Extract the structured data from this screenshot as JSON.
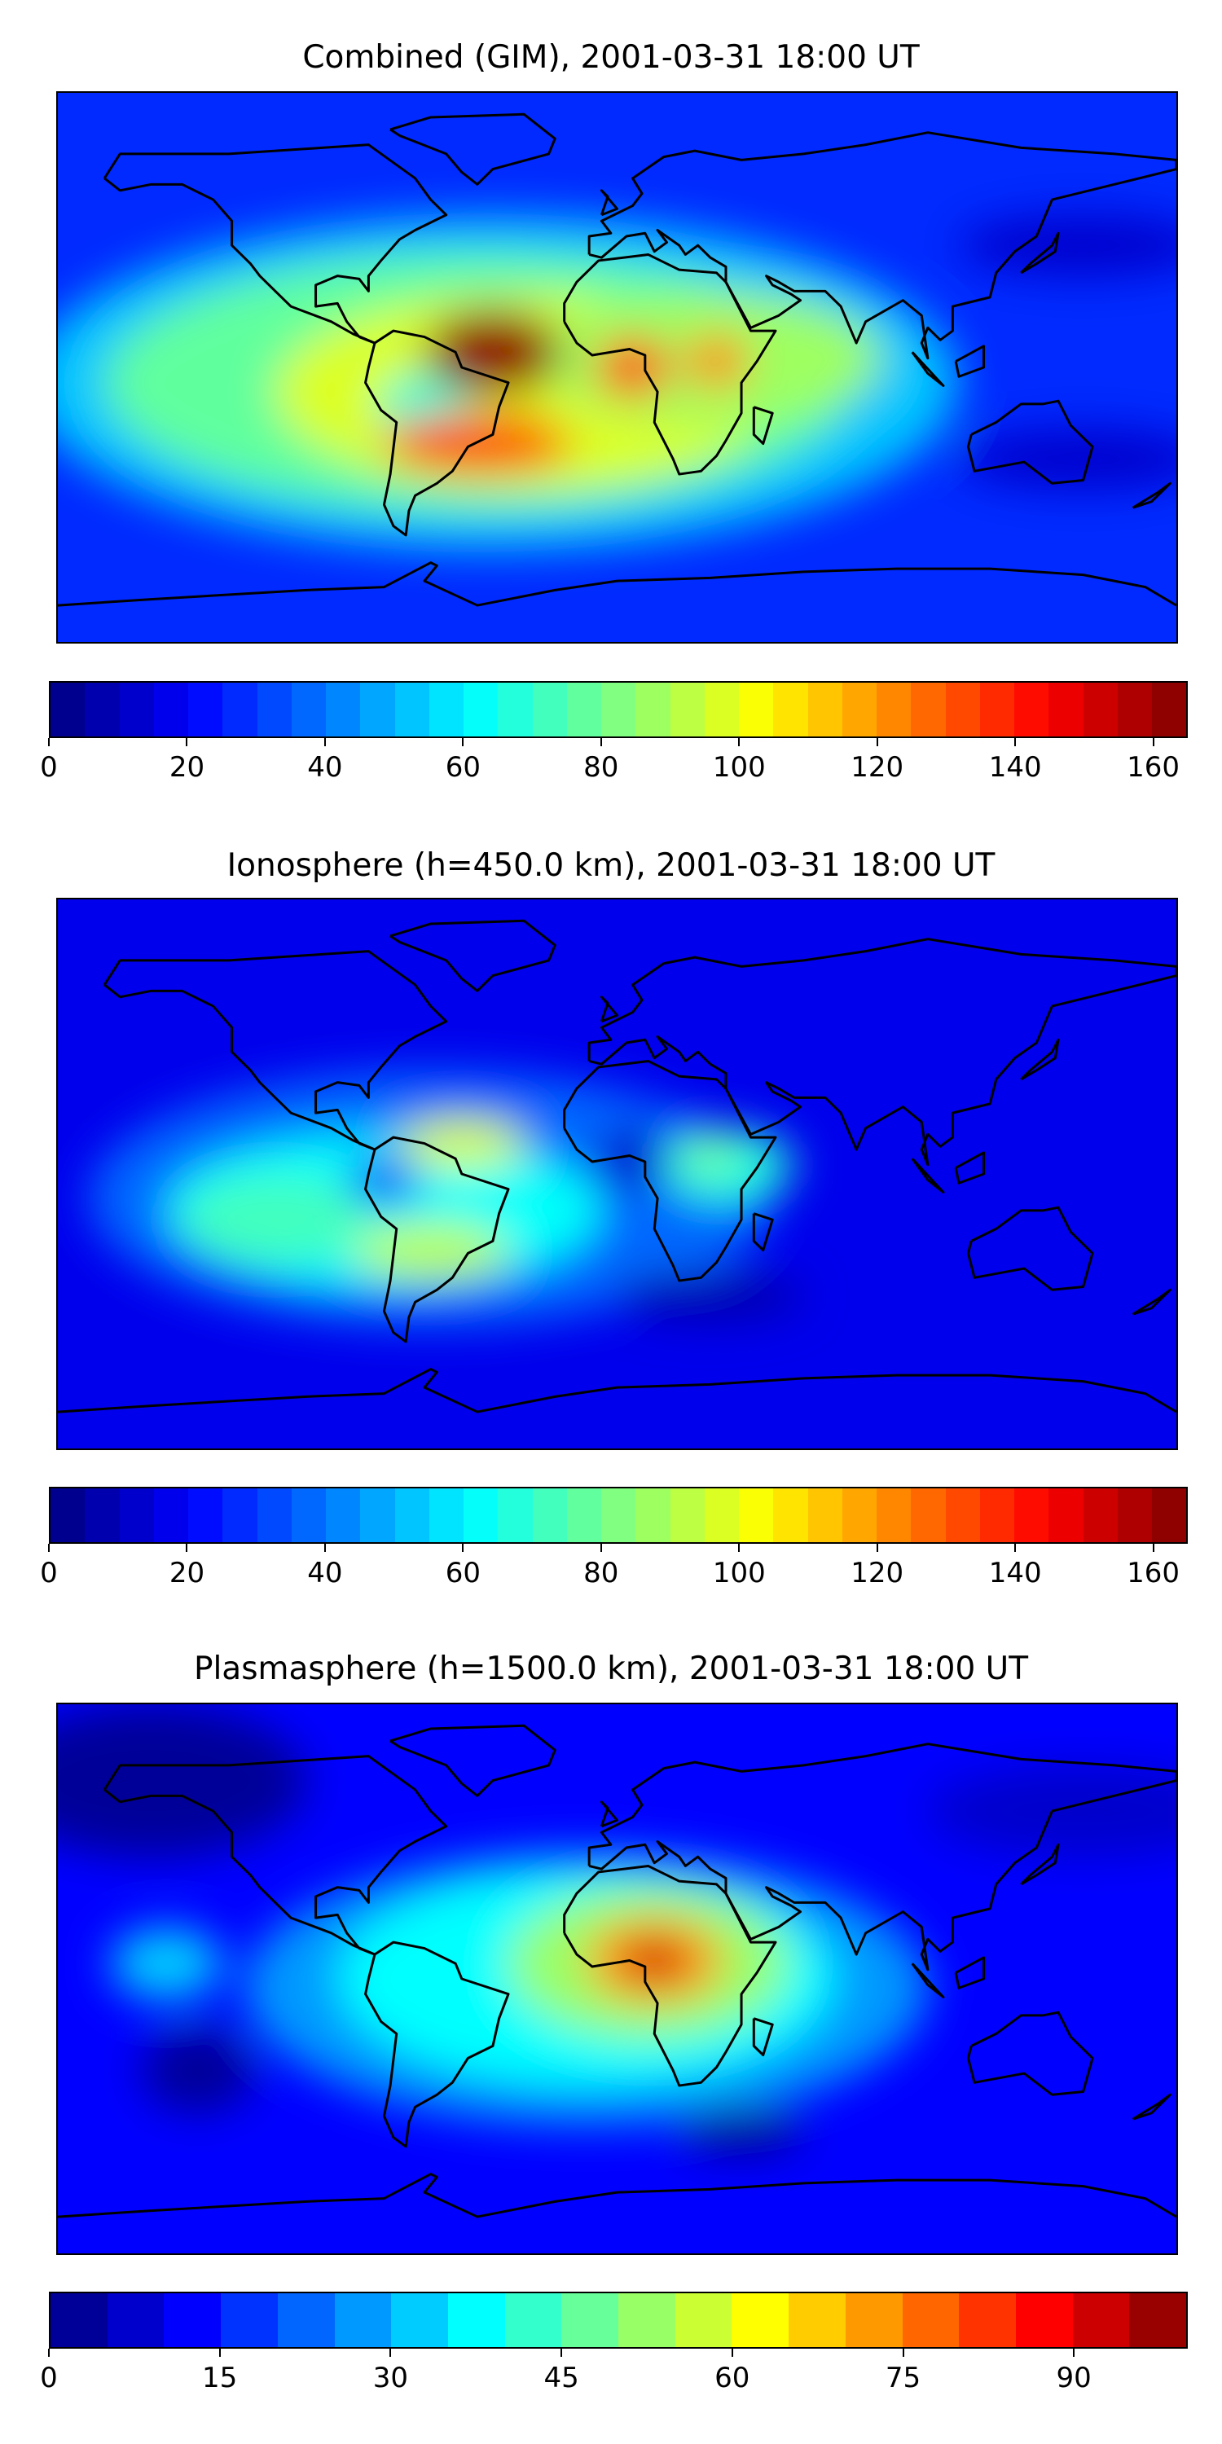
{
  "chart_data": [
    {
      "type": "heatmap",
      "title": "Combined (GIM), 2001-03-31 18:00 UT",
      "projection": "equirectangular",
      "lon_range": [
        -180,
        180
      ],
      "lat_range": [
        -90,
        90
      ],
      "colormap": "jet",
      "vmin": 0,
      "vmax": 165,
      "level_step": 5,
      "colorbar_ticks": [
        "0",
        "20",
        "40",
        "60",
        "80",
        "100",
        "120",
        "140",
        "160"
      ],
      "background_value": 25,
      "field_features": [
        {
          "lon": -40,
          "lat": -5,
          "rlon": 150,
          "rlat": 55,
          "value": 50
        },
        {
          "lon": -45,
          "lat": -5,
          "rlon": 120,
          "rlat": 42,
          "value": 75
        },
        {
          "lon": -30,
          "lat": -8,
          "rlon": 80,
          "rlat": 32,
          "value": 95
        },
        {
          "lon": 30,
          "lat": 3,
          "rlon": 55,
          "rlat": 22,
          "value": 85
        },
        {
          "lon": -62,
          "lat": -12,
          "rlon": 15,
          "rlat": 10,
          "value": 65
        },
        {
          "lon": -40,
          "lat": 5,
          "rlon": 22,
          "rlat": 14,
          "value": 160
        },
        {
          "lon": -45,
          "lat": -25,
          "rlon": 30,
          "rlat": 10,
          "value": 130
        },
        {
          "lon": 5,
          "lat": 0,
          "rlon": 12,
          "rlat": 10,
          "value": 130
        },
        {
          "lon": 32,
          "lat": 2,
          "rlon": 10,
          "rlat": 9,
          "value": 120
        },
        {
          "lon": 150,
          "lat": 40,
          "rlon": 40,
          "rlat": 10,
          "value": 10
        },
        {
          "lon": 150,
          "lat": -30,
          "rlon": 40,
          "rlat": 10,
          "value": 10
        }
      ]
    },
    {
      "type": "heatmap",
      "title": "Ionosphere  (h=450.0 km), 2001-03-31 18:00 UT",
      "projection": "equirectangular",
      "lon_range": [
        -180,
        180
      ],
      "lat_range": [
        -90,
        90
      ],
      "colormap": "jet",
      "vmin": 0,
      "vmax": 165,
      "level_step": 5,
      "colorbar_ticks": [
        "0",
        "20",
        "40",
        "60",
        "80",
        "100",
        "120",
        "140",
        "160"
      ],
      "background_value": 15,
      "field_features": [
        {
          "lon": -60,
          "lat": -8,
          "rlon": 110,
          "rlat": 42,
          "value": 35
        },
        {
          "lon": -75,
          "lat": -12,
          "rlon": 70,
          "rlat": 25,
          "value": 60
        },
        {
          "lon": -110,
          "lat": -15,
          "rlon": 30,
          "rlat": 14,
          "value": 70
        },
        {
          "lon": -60,
          "lat": -25,
          "rlon": 25,
          "rlat": 9,
          "value": 90
        },
        {
          "lon": -50,
          "lat": 10,
          "rlon": 20,
          "rlat": 8,
          "value": 95
        },
        {
          "lon": -75,
          "lat": -2,
          "rlon": 12,
          "rlat": 8,
          "value": 25
        },
        {
          "lon": 35,
          "lat": 3,
          "rlon": 22,
          "rlat": 12,
          "value": 65
        },
        {
          "lon": 30,
          "lat": 6,
          "rlon": 7,
          "rlat": 6,
          "value": 80
        },
        {
          "lon": 5,
          "lat": 5,
          "rlon": 12,
          "rlat": 10,
          "value": 10
        },
        {
          "lon": 30,
          "lat": -40,
          "rlon": 30,
          "rlat": 8,
          "value": 5
        }
      ]
    },
    {
      "type": "heatmap",
      "title": "Plasmasphere (h=1500.0 km), 2001-03-31 18:00 UT",
      "projection": "equirectangular",
      "lon_range": [
        -180,
        180
      ],
      "lat_range": [
        -90,
        90
      ],
      "colormap": "jet",
      "vmin": 0,
      "vmax": 100,
      "level_step": 5,
      "colorbar_ticks": [
        "0",
        "15",
        "30",
        "45",
        "60",
        "75",
        "90"
      ],
      "background_value": 12,
      "field_features": [
        {
          "lon": -150,
          "lat": 65,
          "rlon": 50,
          "rlat": 25,
          "value": 3
        },
        {
          "lon": 150,
          "lat": 55,
          "rlon": 50,
          "rlat": 15,
          "value": 5
        },
        {
          "lon": -10,
          "lat": -3,
          "rlon": 110,
          "rlat": 45,
          "value": 25
        },
        {
          "lon": -10,
          "lat": 0,
          "rlon": 80,
          "rlat": 35,
          "value": 35
        },
        {
          "lon": -145,
          "lat": 5,
          "rlon": 18,
          "rlat": 12,
          "value": 32
        },
        {
          "lon": 10,
          "lat": 5,
          "rlon": 45,
          "rlat": 25,
          "value": 50
        },
        {
          "lon": 12,
          "lat": 6,
          "rlon": 22,
          "rlat": 14,
          "value": 70
        },
        {
          "lon": 12,
          "lat": 6,
          "rlon": 10,
          "rlat": 7,
          "value": 92
        },
        {
          "lon": -135,
          "lat": -30,
          "rlon": 18,
          "rlat": 14,
          "value": 3
        },
        {
          "lon": 40,
          "lat": -50,
          "rlon": 20,
          "rlat": 8,
          "value": 3
        }
      ]
    }
  ]
}
